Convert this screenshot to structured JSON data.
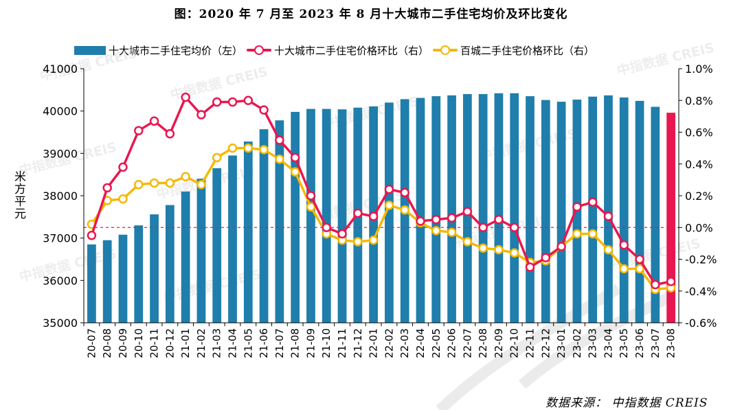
{
  "chart_data": {
    "type": "bar+line",
    "title": "图：2020 年 7 月至 2023 年 8 月十大城市二手住宅均价及环比变化",
    "ylabel_left": "米方平元",
    "categories": [
      "20-07",
      "20-08",
      "20-09",
      "20-10",
      "20-11",
      "20-12",
      "21-01",
      "21-02",
      "21-03",
      "21-04",
      "21-05",
      "21-06",
      "21-07",
      "21-08",
      "21-09",
      "21-10",
      "21-11",
      "21-12",
      "22-01",
      "22-02",
      "22-03",
      "22-04",
      "22-05",
      "22-06",
      "22-07",
      "22-08",
      "22-09",
      "22-10",
      "22-11",
      "22-12",
      "23-01",
      "23-02",
      "23-03",
      "23-04",
      "23-05",
      "23-06",
      "23-07",
      "23-08"
    ],
    "left_axis": {
      "min": 35000,
      "max": 41000,
      "step": 1000,
      "tick_labels": [
        "35000",
        "36000",
        "37000",
        "38000",
        "39000",
        "40000",
        "41000"
      ]
    },
    "right_axis": {
      "min": -0.6,
      "max": 1.0,
      "step": 0.2,
      "tick_labels": [
        "-0.6%",
        "-0.4%",
        "-0.2%",
        "0.0%",
        "0.2%",
        "0.4%",
        "0.6%",
        "0.8%",
        "1.0%"
      ]
    },
    "series": [
      {
        "name": "十大城市二手住宅均价（左）",
        "type": "bar",
        "axis": "left",
        "color": "#1f7eab",
        "highlight_last_color": "#e8174f",
        "values": [
          36850,
          36950,
          37080,
          37300,
          37560,
          37780,
          38100,
          38400,
          38650,
          38950,
          39280,
          39570,
          39780,
          39980,
          40050,
          40050,
          40040,
          40080,
          40110,
          40200,
          40280,
          40310,
          40350,
          40370,
          40400,
          40400,
          40420,
          40420,
          40350,
          40260,
          40220,
          40270,
          40340,
          40370,
          40320,
          40240,
          40100,
          39960
        ]
      },
      {
        "name": "十大城市二手住宅价格环比（右）",
        "type": "line",
        "axis": "right",
        "color": "#e8174f",
        "values": [
          -0.05,
          0.25,
          0.38,
          0.61,
          0.67,
          0.59,
          0.82,
          0.71,
          0.79,
          0.79,
          0.8,
          0.74,
          0.55,
          0.44,
          0.2,
          0.0,
          -0.04,
          0.09,
          0.07,
          0.24,
          0.22,
          0.04,
          0.05,
          0.06,
          0.1,
          0.0,
          0.05,
          0.0,
          -0.25,
          -0.19,
          -0.12,
          0.13,
          0.16,
          0.07,
          -0.11,
          -0.2,
          -0.36,
          -0.34
        ]
      },
      {
        "name": "百城二手住宅价格环比（右）",
        "type": "line",
        "axis": "right",
        "color": "#f5b800",
        "values": [
          0.02,
          0.17,
          0.18,
          0.27,
          0.28,
          0.28,
          0.32,
          0.27,
          0.44,
          0.5,
          0.5,
          0.49,
          0.43,
          0.35,
          0.13,
          -0.04,
          -0.08,
          -0.09,
          -0.08,
          0.14,
          0.11,
          0.03,
          -0.02,
          -0.03,
          -0.09,
          -0.13,
          -0.14,
          -0.16,
          -0.22,
          -0.21,
          -0.12,
          -0.04,
          -0.04,
          -0.14,
          -0.26,
          -0.26,
          -0.39,
          -0.38
        ]
      }
    ],
    "zero_line": {
      "axis": "right",
      "value": 0,
      "style": "dashed",
      "color": "#e8174f"
    },
    "grid": false,
    "legend_position": "top"
  },
  "source": "数据来源：  中指数据 CREIS",
  "watermark_text": "中指数据 CREIS"
}
